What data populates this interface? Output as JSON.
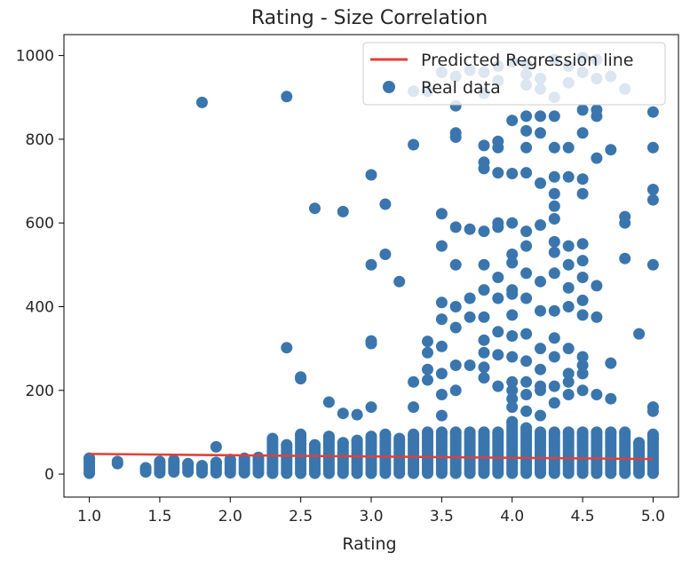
{
  "chart_data": {
    "type": "scatter",
    "title": "Rating - Size Correlation",
    "xlabel": "Rating",
    "ylabel": "",
    "xlim": [
      0.82,
      5.18
    ],
    "ylim": [
      -55,
      1050
    ],
    "xticks": [
      1.0,
      1.5,
      2.0,
      2.5,
      3.0,
      3.5,
      4.0,
      4.5,
      5.0
    ],
    "xtick_labels": [
      "1.0",
      "1.5",
      "2.0",
      "2.5",
      "3.0",
      "3.5",
      "4.0",
      "4.5",
      "5.0"
    ],
    "yticks": [
      0,
      200,
      400,
      600,
      800,
      1000
    ],
    "ytick_labels": [
      "0",
      "200",
      "400",
      "600",
      "800",
      "1000"
    ],
    "grid": false,
    "legend": {
      "position": "top-right",
      "entries": [
        "Predicted Regression line",
        "Real data"
      ]
    },
    "colors": {
      "points": "#3a76ad",
      "line": "#e0403a"
    },
    "series": [
      {
        "name": "Predicted Regression line",
        "type": "line",
        "x": [
          1.0,
          5.0
        ],
        "y": [
          48,
          36
        ]
      },
      {
        "name": "Real data",
        "type": "scatter",
        "clusters": [
          {
            "x": 1.0,
            "lo": 2,
            "hi": 38
          },
          {
            "x": 1.2,
            "lo": 25,
            "hi": 30
          },
          {
            "x": 1.4,
            "lo": 5,
            "hi": 15
          },
          {
            "x": 1.5,
            "lo": 3,
            "hi": 30
          },
          {
            "x": 1.6,
            "lo": 5,
            "hi": 33
          },
          {
            "x": 1.7,
            "lo": 5,
            "hi": 25
          },
          {
            "x": 1.8,
            "lo": 3,
            "hi": 20
          },
          {
            "x": 1.9,
            "lo": 3,
            "hi": 28
          },
          {
            "x": 2.0,
            "lo": 3,
            "hi": 35
          },
          {
            "x": 2.1,
            "lo": 3,
            "hi": 38
          },
          {
            "x": 2.2,
            "lo": 3,
            "hi": 40
          },
          {
            "x": 2.3,
            "lo": 2,
            "hi": 85
          },
          {
            "x": 2.4,
            "lo": 2,
            "hi": 70
          },
          {
            "x": 2.5,
            "lo": 2,
            "hi": 95
          },
          {
            "x": 2.6,
            "lo": 2,
            "hi": 70
          },
          {
            "x": 2.7,
            "lo": 2,
            "hi": 90
          },
          {
            "x": 2.8,
            "lo": 2,
            "hi": 75
          },
          {
            "x": 2.9,
            "lo": 2,
            "hi": 80
          },
          {
            "x": 3.0,
            "lo": 2,
            "hi": 90
          },
          {
            "x": 3.1,
            "lo": 2,
            "hi": 95
          },
          {
            "x": 3.2,
            "lo": 2,
            "hi": 85
          },
          {
            "x": 3.3,
            "lo": 2,
            "hi": 95
          },
          {
            "x": 3.4,
            "lo": 2,
            "hi": 100
          },
          {
            "x": 3.5,
            "lo": 2,
            "hi": 100
          },
          {
            "x": 3.6,
            "lo": 2,
            "hi": 100
          },
          {
            "x": 3.7,
            "lo": 2,
            "hi": 100
          },
          {
            "x": 3.8,
            "lo": 2,
            "hi": 100
          },
          {
            "x": 3.9,
            "lo": 2,
            "hi": 100
          },
          {
            "x": 4.0,
            "lo": 2,
            "hi": 125
          },
          {
            "x": 4.1,
            "lo": 2,
            "hi": 110
          },
          {
            "x": 4.2,
            "lo": 2,
            "hi": 100
          },
          {
            "x": 4.3,
            "lo": 2,
            "hi": 100
          },
          {
            "x": 4.4,
            "lo": 2,
            "hi": 100
          },
          {
            "x": 4.5,
            "lo": 2,
            "hi": 100
          },
          {
            "x": 4.6,
            "lo": 2,
            "hi": 100
          },
          {
            "x": 4.7,
            "lo": 2,
            "hi": 100
          },
          {
            "x": 4.8,
            "lo": 2,
            "hi": 100
          },
          {
            "x": 4.9,
            "lo": 2,
            "hi": 75
          },
          {
            "x": 5.0,
            "lo": 2,
            "hi": 95
          }
        ],
        "points": [
          [
            1.8,
            888
          ],
          [
            2.4,
            902
          ],
          [
            1.9,
            65
          ],
          [
            2.4,
            302
          ],
          [
            2.5,
            232
          ],
          [
            2.5,
            228
          ],
          [
            2.6,
            635
          ],
          [
            2.7,
            172
          ],
          [
            2.8,
            627
          ],
          [
            2.8,
            145
          ],
          [
            2.9,
            142
          ],
          [
            3.0,
            160
          ],
          [
            3.0,
            318
          ],
          [
            3.0,
            312
          ],
          [
            3.0,
            500
          ],
          [
            3.0,
            715
          ],
          [
            3.1,
            645
          ],
          [
            3.1,
            525
          ],
          [
            3.2,
            460
          ],
          [
            3.3,
            787
          ],
          [
            3.3,
            915
          ],
          [
            3.3,
            160
          ],
          [
            3.3,
            220
          ],
          [
            3.4,
            317
          ],
          [
            3.4,
            290
          ],
          [
            3.4,
            250
          ],
          [
            3.4,
            225
          ],
          [
            3.5,
            622
          ],
          [
            3.5,
            545
          ],
          [
            3.5,
            410
          ],
          [
            3.5,
            370
          ],
          [
            3.5,
            305
          ],
          [
            3.5,
            240
          ],
          [
            3.5,
            190
          ],
          [
            3.5,
            140
          ],
          [
            3.6,
            880
          ],
          [
            3.6,
            815
          ],
          [
            3.6,
            805
          ],
          [
            3.6,
            590
          ],
          [
            3.6,
            500
          ],
          [
            3.6,
            400
          ],
          [
            3.6,
            350
          ],
          [
            3.6,
            260
          ],
          [
            3.6,
            200
          ],
          [
            3.7,
            585
          ],
          [
            3.7,
            420
          ],
          [
            3.7,
            375
          ],
          [
            3.7,
            260
          ],
          [
            3.8,
            785
          ],
          [
            3.8,
            745
          ],
          [
            3.8,
            730
          ],
          [
            3.8,
            580
          ],
          [
            3.8,
            500
          ],
          [
            3.8,
            440
          ],
          [
            3.8,
            375
          ],
          [
            3.8,
            320
          ],
          [
            3.8,
            290
          ],
          [
            3.8,
            255
          ],
          [
            3.8,
            230
          ],
          [
            3.9,
            795
          ],
          [
            3.9,
            780
          ],
          [
            3.9,
            720
          ],
          [
            3.9,
            600
          ],
          [
            3.9,
            590
          ],
          [
            3.9,
            470
          ],
          [
            3.9,
            420
          ],
          [
            3.9,
            340
          ],
          [
            3.9,
            285
          ],
          [
            3.9,
            210
          ],
          [
            4.0,
            845
          ],
          [
            4.0,
            718
          ],
          [
            4.0,
            600
          ],
          [
            4.0,
            525
          ],
          [
            4.0,
            505
          ],
          [
            4.0,
            440
          ],
          [
            4.0,
            430
          ],
          [
            4.0,
            380
          ],
          [
            4.0,
            330
          ],
          [
            4.0,
            280
          ],
          [
            4.0,
            220
          ],
          [
            4.0,
            200
          ],
          [
            4.0,
            180
          ],
          [
            4.0,
            160
          ],
          [
            4.1,
            855
          ],
          [
            4.1,
            820
          ],
          [
            4.1,
            780
          ],
          [
            4.1,
            720
          ],
          [
            4.1,
            580
          ],
          [
            4.1,
            545
          ],
          [
            4.1,
            480
          ],
          [
            4.1,
            420
          ],
          [
            4.1,
            335
          ],
          [
            4.1,
            270
          ],
          [
            4.1,
            220
          ],
          [
            4.1,
            190
          ],
          [
            4.1,
            150
          ],
          [
            4.2,
            855
          ],
          [
            4.2,
            815
          ],
          [
            4.2,
            695
          ],
          [
            4.2,
            595
          ],
          [
            4.2,
            460
          ],
          [
            4.2,
            390
          ],
          [
            4.2,
            300
          ],
          [
            4.2,
            250
          ],
          [
            4.2,
            210
          ],
          [
            4.2,
            200
          ],
          [
            4.2,
            140
          ],
          [
            4.3,
            900
          ],
          [
            4.3,
            855
          ],
          [
            4.3,
            780
          ],
          [
            4.3,
            710
          ],
          [
            4.3,
            670
          ],
          [
            4.3,
            640
          ],
          [
            4.3,
            610
          ],
          [
            4.3,
            555
          ],
          [
            4.3,
            530
          ],
          [
            4.3,
            480
          ],
          [
            4.3,
            390
          ],
          [
            4.3,
            325
          ],
          [
            4.3,
            280
          ],
          [
            4.3,
            210
          ],
          [
            4.3,
            170
          ],
          [
            4.4,
            780
          ],
          [
            4.4,
            710
          ],
          [
            4.4,
            545
          ],
          [
            4.4,
            500
          ],
          [
            4.4,
            445
          ],
          [
            4.4,
            400
          ],
          [
            4.4,
            300
          ],
          [
            4.4,
            240
          ],
          [
            4.4,
            220
          ],
          [
            4.4,
            190
          ],
          [
            4.5,
            870
          ],
          [
            4.5,
            815
          ],
          [
            4.5,
            705
          ],
          [
            4.5,
            670
          ],
          [
            4.5,
            550
          ],
          [
            4.5,
            510
          ],
          [
            4.5,
            470
          ],
          [
            4.5,
            415
          ],
          [
            4.5,
            380
          ],
          [
            4.5,
            280
          ],
          [
            4.5,
            260
          ],
          [
            4.5,
            240
          ],
          [
            4.5,
            200
          ],
          [
            4.6,
            870
          ],
          [
            4.6,
            855
          ],
          [
            4.6,
            755
          ],
          [
            4.6,
            450
          ],
          [
            4.6,
            375
          ],
          [
            4.6,
            190
          ],
          [
            4.7,
            775
          ],
          [
            4.7,
            265
          ],
          [
            4.7,
            180
          ],
          [
            4.8,
            615
          ],
          [
            4.8,
            600
          ],
          [
            4.8,
            515
          ],
          [
            4.8,
            920
          ],
          [
            4.9,
            335
          ],
          [
            5.0,
            865
          ],
          [
            5.0,
            780
          ],
          [
            5.0,
            680
          ],
          [
            5.0,
            655
          ],
          [
            5.0,
            500
          ],
          [
            5.0,
            160
          ],
          [
            5.0,
            150
          ],
          [
            5.0,
            85
          ],
          [
            3.7,
            965
          ],
          [
            3.8,
            960
          ],
          [
            3.9,
            975
          ],
          [
            4.0,
            985
          ],
          [
            4.1,
            980
          ],
          [
            4.1,
            955
          ],
          [
            4.2,
            945
          ],
          [
            4.3,
            990
          ],
          [
            4.4,
            975
          ],
          [
            4.5,
            995
          ],
          [
            4.5,
            960
          ],
          [
            4.6,
            990
          ],
          [
            4.7,
            950
          ],
          [
            3.5,
            960
          ],
          [
            3.6,
            950
          ],
          [
            3.9,
            940
          ],
          [
            4.2,
            920
          ],
          [
            3.8,
            910
          ],
          [
            4.1,
            930
          ],
          [
            3.4,
            915
          ],
          [
            4.4,
            935
          ],
          [
            4.6,
            945
          ]
        ]
      }
    ]
  }
}
